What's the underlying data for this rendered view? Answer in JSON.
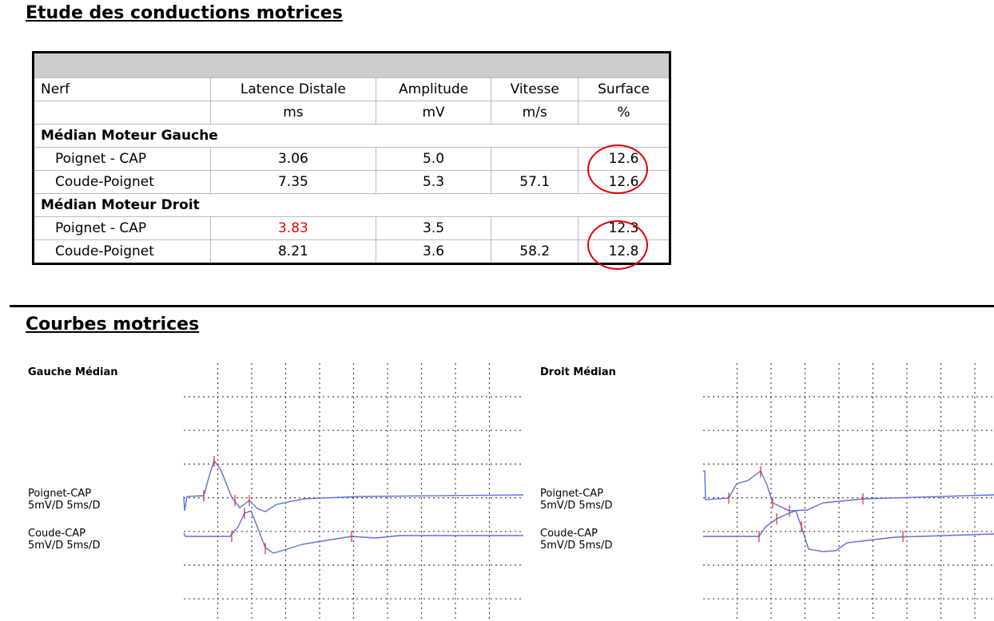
{
  "conduction": {
    "title": "Etude des conductions motrices",
    "header": [
      "Nerf",
      "Latence Distale",
      "Amplitude",
      "Vitesse",
      "Surface"
    ],
    "units": [
      "ms",
      "mV",
      "m/s",
      "%"
    ],
    "groups": [
      {
        "name": "Médian Moteur Gauche",
        "rows": [
          {
            "label": "Poignet - CAP",
            "latency": "3.06",
            "amplitude": "5.0",
            "surface": "12.6"
          },
          {
            "label": "Coude-Poignet",
            "latency": "7.35",
            "amplitude": "5.3",
            "velocity": "57.1",
            "surface": "12.6"
          }
        ]
      },
      {
        "name": "Médian Moteur Droit",
        "rows": [
          {
            "label": "Poignet - CAP",
            "latency": "3.83",
            "amplitude": "3.5",
            "surface": "12.3"
          },
          {
            "label": "Coude-Poignet",
            "latency": "8.21",
            "amplitude": "3.6",
            "velocity": "58.2",
            "surface": "12.8"
          }
        ]
      }
    ]
  },
  "curves": {
    "title": "Courbes motrices",
    "panels": [
      {
        "title": "Gauche Médian",
        "traces": [
          {
            "name": "Poignet-CAP",
            "scale": "5mV/D 5ms/D"
          },
          {
            "name": "Coude-CAP",
            "scale": "5mV/D 5ms/D"
          }
        ]
      },
      {
        "title": "Droit Médian",
        "traces": [
          {
            "name": "Poignet-CAP",
            "scale": "5mV/D 5ms/D"
          },
          {
            "name": "Coude-CAP",
            "scale": "5mV/D 5ms/D"
          }
        ]
      }
    ]
  }
}
